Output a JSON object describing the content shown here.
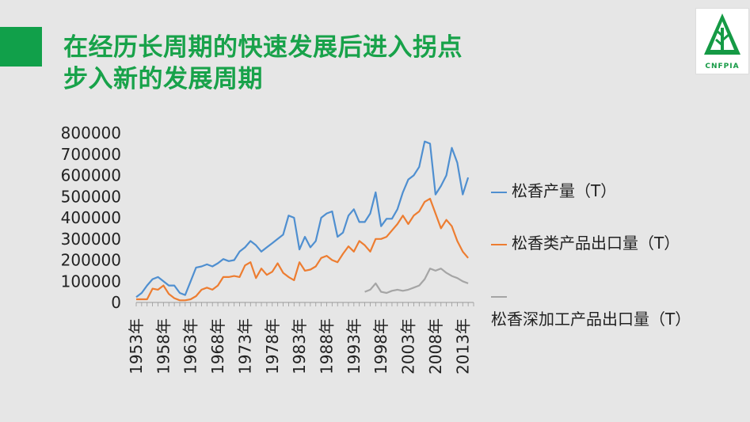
{
  "title": {
    "line1": "在经历长周期的快速发展后进入拐点",
    "line2": "步入新的发展周期"
  },
  "logo": {
    "text": "CNFPIA"
  },
  "chart_data": {
    "type": "line",
    "ylim": [
      0,
      800000
    ],
    "yticks": [
      "800000",
      "700000",
      "600000",
      "500000",
      "400000",
      "300000",
      "200000",
      "100000",
      "0"
    ],
    "xtick_labels": [
      "1953年",
      "1958年",
      "1963年",
      "1968年",
      "1973年",
      "1978年",
      "1983年",
      "1988年",
      "1993年",
      "1998年",
      "2003年",
      "2008年",
      "2013年"
    ],
    "years_start": 1953,
    "years_end": 2015,
    "series": [
      {
        "name": "松香产量（T）",
        "color": "#4f8fd0",
        "start": 1953,
        "values": [
          25000,
          45000,
          80000,
          110000,
          120000,
          100000,
          80000,
          80000,
          45000,
          35000,
          100000,
          165000,
          170000,
          180000,
          170000,
          185000,
          205000,
          195000,
          200000,
          240000,
          260000,
          290000,
          270000,
          240000,
          260000,
          280000,
          300000,
          320000,
          410000,
          400000,
          250000,
          310000,
          260000,
          290000,
          400000,
          420000,
          430000,
          310000,
          330000,
          410000,
          440000,
          380000,
          380000,
          420000,
          520000,
          360000,
          395000,
          395000,
          440000,
          520000,
          580000,
          600000,
          640000,
          760000,
          750000,
          510000,
          550000,
          600000,
          730000,
          660000,
          510000,
          590000
        ]
      },
      {
        "name": "松香类产品出口量（T）",
        "color": "#ed7d31",
        "start": 1953,
        "values": [
          15000,
          15000,
          15000,
          65000,
          60000,
          80000,
          40000,
          20000,
          10000,
          10000,
          15000,
          30000,
          60000,
          70000,
          60000,
          80000,
          120000,
          120000,
          125000,
          120000,
          175000,
          190000,
          115000,
          160000,
          130000,
          145000,
          185000,
          140000,
          120000,
          105000,
          190000,
          150000,
          155000,
          170000,
          210000,
          220000,
          200000,
          190000,
          230000,
          265000,
          240000,
          290000,
          270000,
          240000,
          300000,
          300000,
          310000,
          340000,
          370000,
          410000,
          370000,
          410000,
          430000,
          475000,
          490000,
          420000,
          350000,
          390000,
          360000,
          290000,
          240000,
          210000
        ]
      },
      {
        "name": "松香深加工产品出口量（T）",
        "color": "#a5a5a5",
        "start": 1995,
        "values": [
          50000,
          60000,
          90000,
          50000,
          45000,
          55000,
          60000,
          55000,
          60000,
          70000,
          80000,
          110000,
          160000,
          150000,
          160000,
          140000,
          125000,
          115000,
          100000,
          90000
        ]
      }
    ],
    "legend_placement": "right"
  }
}
